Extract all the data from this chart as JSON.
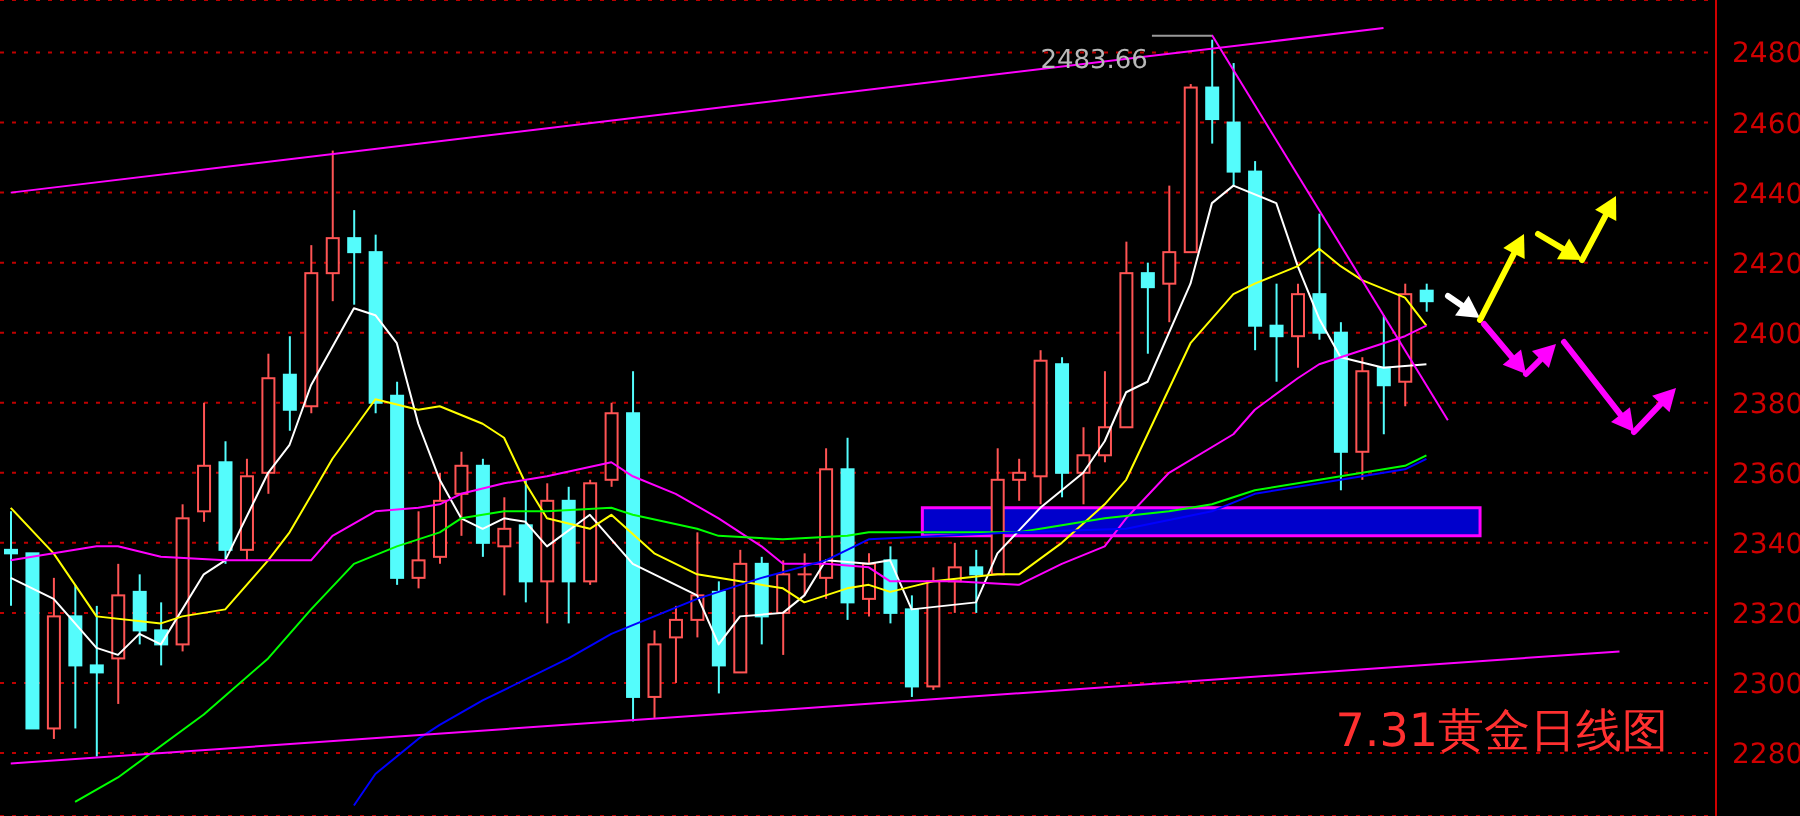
{
  "chart_data": {
    "type": "candlestick",
    "title": "7.31黄金日线图",
    "categories": [
      null,
      null,
      null,
      null,
      null,
      null,
      null,
      null,
      null,
      null,
      null,
      null,
      null,
      null,
      null,
      null,
      null,
      null,
      null,
      null,
      null,
      null,
      null,
      null,
      null,
      null,
      null,
      null,
      null,
      null,
      null,
      null,
      null,
      null,
      null,
      null,
      null,
      null,
      null,
      null,
      null,
      null,
      null,
      null,
      null,
      null,
      null,
      null,
      null,
      null,
      null,
      null,
      null,
      null,
      null,
      null,
      null,
      null,
      null,
      null,
      null,
      null,
      null,
      null,
      null,
      null,
      null,
      null,
      null,
      null,
      null,
      null,
      null,
      null,
      null,
      null,
      null,
      null,
      null,
      null
    ],
    "ohlc": [
      [
        2338,
        2349,
        2322,
        2337
      ],
      [
        2337,
        2337,
        2287,
        2287
      ],
      [
        2287,
        2330,
        2284,
        2319
      ],
      [
        2319,
        2328,
        2287,
        2305
      ],
      [
        2305,
        2322,
        2279,
        2303
      ],
      [
        2307,
        2334,
        2294,
        2325
      ],
      [
        2326,
        2331,
        2311,
        2315
      ],
      [
        2315,
        2323,
        2305,
        2311
      ],
      [
        2311,
        2351,
        2309,
        2347
      ],
      [
        2349,
        2380,
        2346,
        2362
      ],
      [
        2363,
        2369,
        2334,
        2338
      ],
      [
        2338,
        2364,
        2335,
        2359
      ],
      [
        2360,
        2394,
        2354,
        2387
      ],
      [
        2388,
        2399,
        2372,
        2378
      ],
      [
        2379,
        2425,
        2377,
        2417
      ],
      [
        2417,
        2452,
        2409,
        2427
      ],
      [
        2427,
        2435,
        2408,
        2423
      ],
      [
        2423,
        2428,
        2377,
        2380
      ],
      [
        2382,
        2386,
        2328,
        2330
      ],
      [
        2330,
        2349,
        2327,
        2335
      ],
      [
        2336,
        2360,
        2334,
        2352
      ],
      [
        2354,
        2366,
        2342,
        2362
      ],
      [
        2362,
        2364,
        2336,
        2340
      ],
      [
        2339,
        2353,
        2325,
        2344
      ],
      [
        2345,
        2358,
        2323,
        2329
      ],
      [
        2329,
        2357,
        2317,
        2352
      ],
      [
        2352,
        2356,
        2317,
        2329
      ],
      [
        2329,
        2358,
        2328,
        2357
      ],
      [
        2358,
        2380,
        2356,
        2377
      ],
      [
        2377,
        2389,
        2289,
        2296
      ],
      [
        2296,
        2315,
        2290,
        2311
      ],
      [
        2313,
        2322,
        2300,
        2318
      ],
      [
        2318,
        2343,
        2313,
        2325
      ],
      [
        2326,
        2329,
        2297,
        2305
      ],
      [
        2303,
        2338,
        2303,
        2334
      ],
      [
        2334,
        2336,
        2311,
        2319
      ],
      [
        2320,
        2335,
        2308,
        2331
      ],
      [
        2331,
        2337,
        2325,
        2331
      ],
      [
        2330,
        2367,
        2324,
        2361
      ],
      [
        2361,
        2370,
        2318,
        2323
      ],
      [
        2324,
        2337,
        2319,
        2334
      ],
      [
        2335,
        2339,
        2317,
        2320
      ],
      [
        2321,
        2325,
        2296,
        2299
      ],
      [
        2299,
        2333,
        2298,
        2329
      ],
      [
        2329,
        2340,
        2320,
        2333
      ],
      [
        2333,
        2338,
        2320,
        2331
      ],
      [
        2331,
        2367,
        2331,
        2358
      ],
      [
        2358,
        2364,
        2352,
        2360
      ],
      [
        2359,
        2395,
        2351,
        2392
      ],
      [
        2391,
        2393,
        2353,
        2360
      ],
      [
        2360,
        2373,
        2351,
        2365
      ],
      [
        2365,
        2389,
        2363,
        2373
      ],
      [
        2373,
        2426,
        2373,
        2417
      ],
      [
        2417,
        2420,
        2394,
        2413
      ],
      [
        2414,
        2442,
        2403,
        2423
      ],
      [
        2423,
        2471,
        2423,
        2470
      ],
      [
        2470,
        2483.66,
        2454,
        2461
      ],
      [
        2460,
        2477,
        2442,
        2446
      ],
      [
        2446,
        2449,
        2395,
        2402
      ],
      [
        2402,
        2414,
        2386,
        2399
      ],
      [
        2399,
        2414,
        2390,
        2411
      ],
      [
        2411,
        2434,
        2398,
        2400
      ],
      [
        2400,
        2403,
        2355,
        2366
      ],
      [
        2366,
        2393,
        2358,
        2389
      ],
      [
        2390,
        2405,
        2371,
        2385
      ],
      [
        2386,
        2414,
        2379,
        2411
      ],
      [
        2412,
        2414,
        2406,
        2409
      ],
      null,
      null,
      null,
      null,
      null,
      null,
      null,
      null,
      null,
      null,
      null,
      null,
      null
    ],
    "series": [
      {
        "type": "line",
        "color": "#ffffff",
        "values": [
          2330,
          null,
          2324,
          null,
          2310,
          2308,
          2314,
          2311,
          null,
          2331,
          2335,
          null,
          2360,
          2368,
          2385,
          null,
          2407,
          2405,
          2397,
          2374,
          2358,
          2347,
          2344,
          2347,
          2346,
          2339,
          null,
          2348,
          null,
          2334,
          2331,
          null,
          2325,
          2311,
          2319,
          null,
          2320,
          2325,
          2335,
          null,
          2334,
          2335,
          2321,
          null,
          null,
          2323,
          2337,
          null,
          2350,
          null,
          2360,
          2369,
          2383,
          2386,
          null,
          2414,
          2437,
          2442,
          null,
          2437,
          2419,
          2404,
          2393,
          null,
          2390,
          null,
          2391,
          null,
          null,
          null,
          null,
          null,
          null,
          null,
          null,
          null,
          null,
          null,
          null,
          null
        ]
      },
      {
        "type": "line",
        "color": "#ffff00",
        "values": [
          2350,
          null,
          2337,
          null,
          2319,
          null,
          null,
          2317,
          2319,
          null,
          2321,
          null,
          2335,
          2343,
          null,
          2364,
          null,
          2381,
          null,
          2378,
          2379,
          null,
          2374,
          2370,
          2357,
          2347,
          null,
          2344,
          2348,
          null,
          2337,
          null,
          2331,
          null,
          2329,
          null,
          2327,
          2323,
          null,
          2327,
          2328,
          2326,
          null,
          2329,
          null,
          null,
          2331,
          2331,
          null,
          2340,
          null,
          2351,
          2358,
          2371,
          null,
          2397,
          null,
          2411,
          2414,
          null,
          2419,
          2424,
          2419,
          2415,
          null,
          2410,
          2402,
          null,
          null,
          null,
          null,
          null,
          null,
          null,
          null,
          null,
          null,
          null,
          null,
          null
        ]
      },
      {
        "type": "line",
        "color": "#ff00ff",
        "values": [
          2335,
          null,
          2337,
          null,
          2339,
          2339,
          null,
          2336,
          null,
          null,
          2335,
          null,
          2335,
          null,
          2335,
          2342,
          null,
          2349,
          null,
          2350,
          2351,
          2354,
          null,
          2357,
          null,
          2359,
          null,
          null,
          2363,
          2359,
          null,
          2354,
          null,
          2347,
          null,
          2339,
          2334,
          null,
          2334,
          null,
          2333,
          2329,
          null,
          null,
          2329,
          null,
          null,
          2328,
          null,
          2334,
          null,
          2339,
          2347,
          null,
          2360,
          null,
          null,
          2371,
          2378,
          null,
          2387,
          2391,
          null,
          2395,
          null,
          2399,
          2402,
          null,
          null,
          null,
          null,
          null,
          null,
          null,
          null,
          null,
          null,
          null,
          null,
          null
        ]
      },
      {
        "type": "line",
        "color": "#00ff00",
        "values": [
          null,
          null,
          null,
          2266,
          null,
          2273,
          null,
          null,
          null,
          2291,
          null,
          null,
          2307,
          null,
          2321,
          null,
          2334,
          null,
          2339,
          null,
          2343,
          2347,
          null,
          2349,
          null,
          2349,
          null,
          null,
          2350,
          2348,
          null,
          null,
          2344,
          2342,
          null,
          null,
          2341,
          null,
          null,
          2342,
          2343,
          null,
          null,
          2343,
          null,
          null,
          null,
          2343,
          null,
          null,
          null,
          2347,
          null,
          null,
          2349,
          null,
          2351,
          null,
          2355,
          null,
          null,
          2358,
          null,
          2360,
          null,
          2362,
          2365,
          null,
          null,
          null,
          null,
          null,
          null,
          null,
          null,
          null,
          null,
          null,
          null,
          null
        ]
      },
      {
        "type": "line",
        "color": "#0000ff",
        "values": [
          null,
          null,
          null,
          null,
          null,
          null,
          null,
          null,
          null,
          null,
          null,
          null,
          null,
          null,
          null,
          null,
          2265,
          2274,
          null,
          2284,
          2288,
          null,
          2295,
          null,
          null,
          null,
          2307,
          null,
          2314,
          null,
          null,
          null,
          2324,
          null,
          null,
          2330,
          null,
          null,
          2335,
          null,
          2341,
          null,
          null,
          null,
          null,
          null,
          null,
          2343,
          null,
          null,
          null,
          null,
          2344,
          null,
          null,
          null,
          2349,
          null,
          2354,
          null,
          null,
          2357,
          null,
          null,
          null,
          2361,
          2364,
          null,
          null,
          null,
          null,
          null,
          null,
          null,
          null,
          null,
          null,
          null,
          null,
          null
        ]
      },
      {
        "type": "line",
        "color": "#ff00ff",
        "values": [
          2440,
          null,
          null,
          null,
          null,
          null,
          null,
          null,
          null,
          null,
          null,
          null,
          null,
          null,
          null,
          null,
          null,
          null,
          null,
          null,
          null,
          null,
          null,
          null,
          null,
          null,
          null,
          null,
          null,
          null,
          null,
          null,
          null,
          null,
          null,
          null,
          null,
          null,
          null,
          null,
          null,
          null,
          null,
          null,
          null,
          null,
          null,
          null,
          null,
          null,
          null,
          null,
          null,
          null,
          null,
          null,
          null,
          null,
          null,
          null,
          null,
          null,
          null,
          null,
          2487,
          null,
          null,
          null,
          null,
          null,
          null,
          null,
          null,
          null,
          null,
          null,
          null,
          null,
          null,
          null
        ]
      },
      {
        "type": "line",
        "color": "#ff00ff",
        "values": [
          2277,
          null,
          null,
          null,
          null,
          null,
          null,
          null,
          null,
          null,
          null,
          null,
          null,
          null,
          null,
          null,
          null,
          null,
          null,
          null,
          null,
          null,
          null,
          null,
          null,
          null,
          null,
          null,
          null,
          null,
          null,
          null,
          null,
          null,
          null,
          null,
          null,
          null,
          null,
          null,
          null,
          null,
          null,
          null,
          null,
          null,
          null,
          null,
          null,
          null,
          null,
          null,
          null,
          null,
          null,
          null,
          null,
          null,
          null,
          null,
          null,
          null,
          null,
          null,
          null,
          null,
          null,
          null,
          null,
          null,
          null,
          null,
          null,
          null,
          null,
          2309,
          null,
          null,
          null,
          null
        ]
      },
      {
        "type": "line",
        "color": "#ff00ff",
        "values": [
          null,
          null,
          null,
          null,
          null,
          null,
          null,
          null,
          null,
          null,
          null,
          null,
          null,
          null,
          null,
          null,
          null,
          null,
          null,
          null,
          null,
          null,
          null,
          null,
          null,
          null,
          null,
          null,
          null,
          null,
          null,
          null,
          null,
          null,
          null,
          null,
          null,
          null,
          null,
          null,
          null,
          null,
          null,
          null,
          null,
          null,
          null,
          null,
          null,
          null,
          null,
          null,
          null,
          null,
          null,
          null,
          2485,
          null,
          null,
          null,
          null,
          null,
          null,
          null,
          null,
          null,
          null,
          2375,
          null,
          null,
          null,
          null,
          null,
          null,
          null,
          null,
          null,
          null,
          null,
          null
        ]
      }
    ],
    "ylim": [
      2262,
      2495
    ],
    "yticks": [
      2280,
      2300,
      2320,
      2340,
      2360,
      2380,
      2400,
      2420,
      2440,
      2460,
      2480
    ],
    "grid": "y",
    "tick_labels": "y",
    "bands": [
      {
        "axis": "y",
        "from": 2342,
        "to": 2350,
        "color": "#0000cc"
      }
    ],
    "annotations": [
      "2483.66"
    ]
  }
}
